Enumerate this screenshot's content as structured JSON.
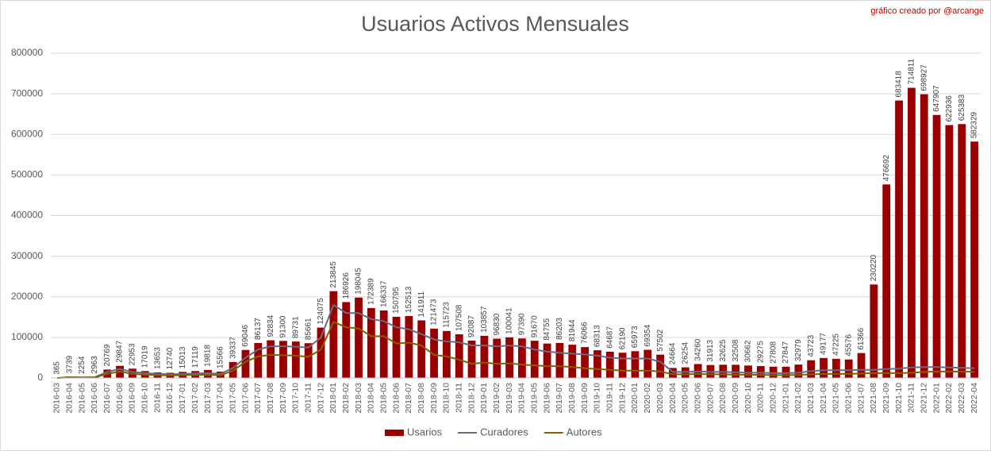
{
  "chart_data": {
    "type": "bar_line",
    "title": "Usuarios Activos Mensuales",
    "credit": "gráfico creado por @arcange",
    "categories": [
      "2016-03",
      "2016-04",
      "2016-05",
      "2016-06",
      "2016-07",
      "2016-08",
      "2016-09",
      "2016-10",
      "2016-11",
      "2016-12",
      "2017-01",
      "2017-02",
      "2017-03",
      "2017-04",
      "2017-05",
      "2017-06",
      "2017-07",
      "2017-08",
      "2017-09",
      "2017-10",
      "2017-11",
      "2017-12",
      "2018-01",
      "2018-02",
      "2018-03",
      "2018-04",
      "2018-05",
      "2018-06",
      "2018-07",
      "2018-08",
      "2018-09",
      "2018-10",
      "2018-11",
      "2018-12",
      "2019-01",
      "2019-02",
      "2019-03",
      "2019-04",
      "2019-05",
      "2019-06",
      "2019-07",
      "2019-08",
      "2019-09",
      "2019-10",
      "2019-11",
      "2019-12",
      "2020-01",
      "2020-02",
      "2020-03",
      "2020-04",
      "2020-05",
      "2020-06",
      "2020-07",
      "2020-08",
      "2020-09",
      "2020-10",
      "2020-11",
      "2020-12",
      "2021-01",
      "2021-02",
      "2021-03",
      "2021-04",
      "2021-05",
      "2021-06",
      "2021-07",
      "2021-08",
      "2021-09",
      "2021-10",
      "2021-11",
      "2021-12",
      "2022-01",
      "2022-02",
      "2022-03",
      "2022-04"
    ],
    "series": [
      {
        "name": "Usarios",
        "kind": "bar",
        "color": "#9b0000",
        "show_labels": true,
        "values": [
          365,
          3739,
          2254,
          2963,
          20769,
          29847,
          22953,
          17019,
          13653,
          12740,
          15013,
          17119,
          19818,
          15566,
          39337,
          69046,
          86137,
          92834,
          91300,
          89731,
          85661,
          124075,
          213845,
          186926,
          198045,
          172389,
          166337,
          150795,
          152513,
          141911,
          121473,
          115723,
          107508,
          92087,
          103857,
          96830,
          100041,
          97390,
          91670,
          84755,
          86203,
          81944,
          76066,
          68313,
          64687,
          62190,
          65973,
          69354,
          57502,
          24664,
          26254,
          34260,
          31913,
          32625,
          32508,
          30662,
          29275,
          27808,
          27847,
          32979,
          43723,
          49177,
          47225,
          45576,
          61366,
          230220,
          476692,
          683418,
          714811,
          698927,
          647907,
          622936,
          625383,
          582329
        ]
      },
      {
        "name": "Curadores",
        "kind": "line",
        "color": "#6b6b80",
        "values": [
          0,
          2000,
          1500,
          2000,
          15000,
          22000,
          15000,
          12000,
          10000,
          9000,
          10000,
          11000,
          12000,
          10000,
          25000,
          50000,
          70000,
          78000,
          78000,
          77000,
          75000,
          100000,
          180000,
          160000,
          160000,
          145000,
          140000,
          125000,
          120000,
          108000,
          95000,
          90000,
          88000,
          80000,
          80000,
          78000,
          80000,
          78000,
          70000,
          65000,
          62000,
          60000,
          58000,
          55000,
          50000,
          48000,
          48000,
          48000,
          40000,
          15000,
          15000,
          16000,
          15000,
          15000,
          14000,
          13000,
          13000,
          12000,
          12000,
          13000,
          17000,
          19000,
          19000,
          19000,
          20000,
          20000,
          22000,
          23000,
          26000,
          27000,
          27000,
          26000,
          25000,
          24000
        ]
      },
      {
        "name": "Autores",
        "kind": "line",
        "color": "#806000",
        "values": [
          0,
          1500,
          1000,
          1500,
          10000,
          16000,
          10000,
          8000,
          7000,
          6000,
          7000,
          7500,
          8000,
          6500,
          18000,
          40000,
          53000,
          57000,
          56000,
          55000,
          52000,
          70000,
          138000,
          125000,
          122000,
          103000,
          103000,
          85000,
          87000,
          80000,
          57000,
          53000,
          45000,
          35000,
          38000,
          35000,
          36000,
          33000,
          31000,
          29000,
          29000,
          27000,
          24000,
          22000,
          20000,
          18000,
          18000,
          18000,
          16000,
          9000,
          9000,
          10000,
          9000,
          9000,
          8000,
          8000,
          7500,
          7000,
          7000,
          7500,
          9000,
          10000,
          10000,
          10000,
          11000,
          12000,
          12000,
          12000,
          13000,
          15000,
          16000,
          16000,
          16000,
          15000
        ]
      }
    ],
    "ylim": [
      0,
      800000
    ],
    "yticks": [
      0,
      100000,
      200000,
      300000,
      400000,
      500000,
      600000,
      700000,
      800000
    ],
    "grid": true,
    "legend": "bottom"
  }
}
